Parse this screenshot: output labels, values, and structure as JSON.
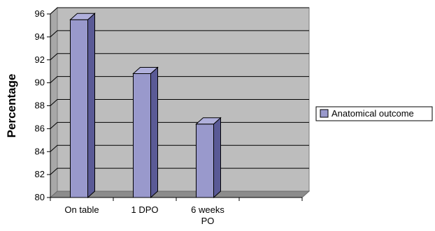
{
  "chart_data": {
    "type": "bar",
    "categories": [
      "On table",
      "1 DPO",
      "6 weeks PO",
      ""
    ],
    "series": [
      {
        "name": "Anatomical outcome",
        "values": [
          95.5,
          90.8,
          86.4,
          null
        ]
      }
    ],
    "title": "",
    "xlabel": "",
    "ylabel": "Percentage",
    "ylim": [
      80,
      96
    ],
    "ytick_step": 2,
    "grid": true,
    "legend_position": "right",
    "colors": {
      "bar_front": "#9999cc",
      "bar_side": "#5a5a96",
      "bar_top": "#b0b0dc",
      "plot_wall": "#bdbdbd",
      "plot_floor": "#8c8c8c",
      "gridline": "#000000"
    }
  }
}
